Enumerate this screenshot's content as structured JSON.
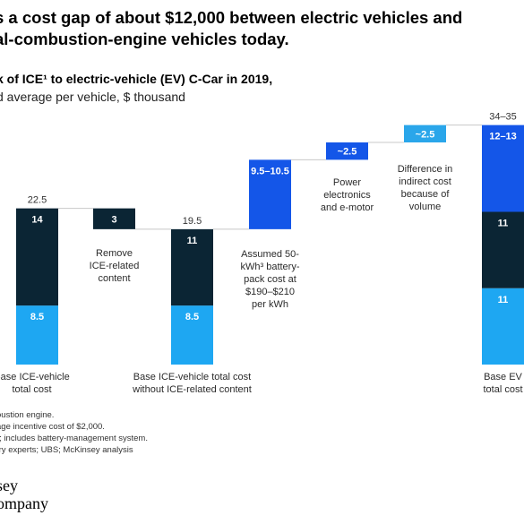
{
  "header": {
    "title_line1": "s a cost gap of about $12,000 between electric vehicles and",
    "title_line2": "al-combustion-engine vehicles today.",
    "subtitle": "k of ICE¹ to electric-vehicle (EV) C-Car in 2019,",
    "subtitle2": "d average per vehicle, $ thousand"
  },
  "colors": {
    "dark": "#0b2534",
    "light": "#1ea7f2",
    "mid_blue": "#1456e8",
    "light_blue_box": "#2aa6ea",
    "connector": "#c8c8c8"
  },
  "chart_data": {
    "type": "bar",
    "subtype": "waterfall",
    "bars": [
      {
        "label": "Base ICE-vehicle total cost",
        "total_label": "22.5",
        "segments": [
          {
            "value": 8.5,
            "text": "8.5",
            "color": "light"
          },
          {
            "value": 14,
            "text": "14",
            "color": "dark"
          }
        ]
      },
      {
        "label": "Remove ICE-related content",
        "delta": -3,
        "text": "3",
        "color": "dark"
      },
      {
        "label": "Base ICE-vehicle total cost without ICE-related content",
        "total_label": "19.5",
        "segments": [
          {
            "value": 8.5,
            "text": "8.5",
            "color": "light"
          },
          {
            "value": 11,
            "text": "11",
            "color": "dark"
          }
        ]
      },
      {
        "label": "Assumed 50-kWh³ battery-pack cost at $190–$210 per kWh",
        "delta": 10,
        "text": "9.5–10.5",
        "color": "mid_blue"
      },
      {
        "label": "Power electronics and e-motor",
        "delta": 2.5,
        "text": "~2.5",
        "color": "mid_blue"
      },
      {
        "label": "Difference in indirect cost because of volume",
        "delta": 2.5,
        "text": "~2.5",
        "color": "light_blue_box"
      },
      {
        "label": "Base EV total cost",
        "total_label": "34–35",
        "segments": [
          {
            "value": 11,
            "text": "11",
            "color": "light"
          },
          {
            "value": 11,
            "text": "11",
            "color": "dark"
          },
          {
            "value": 12.5,
            "text": "12–13",
            "color": "mid_blue"
          }
        ]
      }
    ],
    "bar_labels": {
      "b0": [
        "Base ICE-vehicle",
        "total cost"
      ],
      "b1": [
        "Remove",
        "ICE-related",
        "content"
      ],
      "b2": [
        "Base ICE-vehicle total cost",
        "without ICE-related content"
      ],
      "b3": [
        "Assumed 50-",
        "kWh³ battery-",
        "pack cost at",
        "$190–$210",
        "per kWh"
      ],
      "b4": [
        "Power",
        "electronics",
        "and e-motor"
      ],
      "b5": [
        "Difference in",
        "indirect cost",
        "because of",
        "volume"
      ],
      "b6": [
        "Base EV",
        "total cost"
      ]
    }
  },
  "footnotes": [
    "oustion engine.",
    "age incentive cost of $2,000.",
    "r; includes battery-management system.",
    "try experts; UBS; McKinsey analysis"
  ],
  "logo": {
    "line1": "sey",
    "line2": "ompany"
  }
}
